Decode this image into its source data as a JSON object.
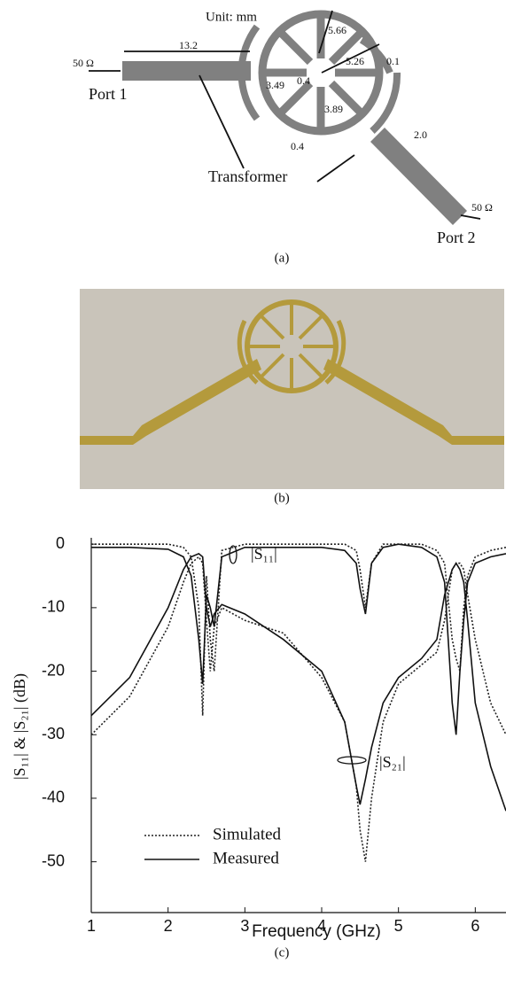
{
  "figure": {
    "a": {
      "labels": [
        "Unit: mm",
        "50 Ω",
        "13.2",
        "Port 1",
        "3.49",
        "0.4",
        "5.66",
        "5.26",
        "0.1",
        "3.89",
        "0.4",
        "2.0",
        "Transformer",
        "50 Ω",
        "Port 2"
      ],
      "caption": "(a)"
    },
    "b": {
      "caption": "(b)"
    },
    "c": {
      "caption": "(c)"
    }
  },
  "chart_data": {
    "type": "line",
    "xlabel": "Frequency (GHz)",
    "ylabel": "|S₁₁| & |S₂₁| (dB)",
    "xlim": [
      1,
      6.4
    ],
    "xticks": [
      1,
      2,
      3,
      4,
      5,
      6
    ],
    "ylim": [
      -58,
      1
    ],
    "yticks": [
      0,
      -10,
      -20,
      -30,
      -40,
      -50
    ],
    "grid": false,
    "annotations": [
      "|S₁₁|",
      "|S₂₁|"
    ],
    "x": [
      1,
      1.5,
      2,
      2.2,
      2.3,
      2.4,
      2.45,
      2.5,
      2.55,
      2.6,
      2.7,
      3,
      3.5,
      4,
      4.3,
      4.45,
      4.5,
      4.57,
      4.65,
      4.8,
      5,
      5.3,
      5.5,
      5.6,
      5.7,
      5.75,
      5.8,
      5.85,
      5.9,
      6,
      6.2,
      6.4
    ],
    "series": [
      {
        "name": "Simulated",
        "color": "#222",
        "dash": "dotted",
        "s11": [
          0,
          0,
          0,
          -0.5,
          -2,
          -10,
          -27,
          -5,
          -15,
          -20,
          -1,
          0,
          0,
          0,
          0,
          -1,
          -4,
          -10,
          -3,
          0,
          0,
          0,
          -1,
          -3,
          -15,
          -18,
          -20,
          -10,
          -5,
          -2,
          -1,
          -0.5
        ],
        "s21": [
          -30,
          -24,
          -13,
          -6,
          -3,
          -2,
          -3,
          -12,
          -20,
          -13,
          -10,
          -12,
          -14,
          -21,
          -28,
          -38,
          -45,
          -50,
          -40,
          -28,
          -22,
          -19,
          -17,
          -12,
          -4,
          -3,
          -3,
          -4,
          -8,
          -15,
          -25,
          -30
        ]
      },
      {
        "name": "Measured",
        "color": "#111",
        "dash": "solid",
        "s11": [
          -0.5,
          -0.5,
          -0.8,
          -2,
          -5,
          -15,
          -22,
          -8,
          -10,
          -13,
          -2,
          -0.5,
          -0.5,
          -0.5,
          -1,
          -3,
          -7,
          -11,
          -3,
          -0.5,
          0,
          -0.5,
          -2,
          -6,
          -25,
          -30,
          -20,
          -12,
          -6,
          -3,
          -2,
          -1.5
        ],
        "s21": [
          -27,
          -21,
          -10,
          -4,
          -2,
          -1.5,
          -2,
          -10,
          -13,
          -11,
          -9.5,
          -11,
          -15,
          -20,
          -28,
          -38,
          -41,
          -37,
          -32,
          -25,
          -21,
          -18,
          -15,
          -8,
          -4,
          -3,
          -4,
          -6,
          -12,
          -25,
          -35,
          -42
        ]
      }
    ]
  }
}
